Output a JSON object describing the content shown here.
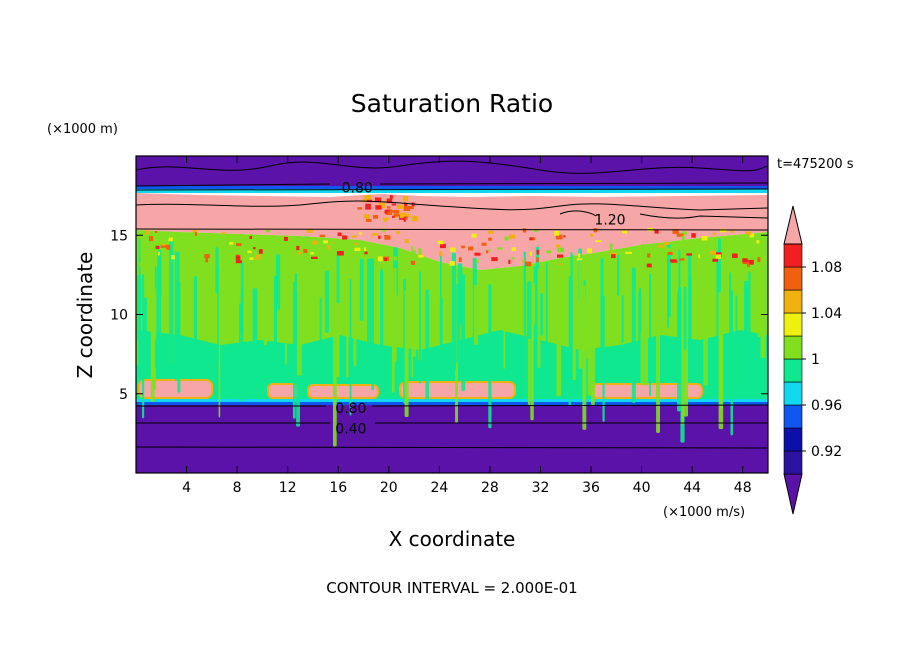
{
  "chart_data": {
    "type": "heatmap",
    "title": "Saturation Ratio",
    "xlabel": "X coordinate",
    "ylabel": "Z coordinate",
    "x_unit": "(×1000 m/s)",
    "y_unit": "(×1000 m)",
    "time_label": "t=475200 s",
    "footer": "CONTOUR INTERVAL = 2.000E-01",
    "xlim": [
      0,
      50
    ],
    "ylim": [
      0,
      20
    ],
    "x_ticks": [
      4,
      8,
      12,
      16,
      20,
      24,
      28,
      32,
      36,
      40,
      44,
      48
    ],
    "y_ticks": [
      5,
      10,
      15
    ],
    "contour_labels": [
      {
        "text": "0.80",
        "x": 17.5,
        "y": 18.0
      },
      {
        "text": "1.20",
        "x": 37.5,
        "y": 16.0
      },
      {
        "text": "0.80",
        "x": 17.0,
        "y": 4.1
      },
      {
        "text": "0.40",
        "x": 17.0,
        "y": 2.8
      }
    ],
    "layers": [
      {
        "level": "<0.92",
        "z_from": 0.0,
        "z_to": 4.4
      },
      {
        "level": "0.94",
        "z_from": 4.4,
        "z_to": 4.6
      },
      {
        "level": "0.96",
        "z_from": 4.6,
        "z_to": 4.8
      },
      {
        "level": "0.98-1",
        "z_from": 4.8,
        "z_to": 6.0
      },
      {
        "level": "1-1.02",
        "z_from": 6.0,
        "z_to": 15.0
      },
      {
        "level": "1.02-1.08",
        "z_from": 15.0,
        "z_to": 15.6
      },
      {
        "level": ">1.1",
        "z_from": 15.6,
        "z_to": 17.5
      },
      {
        "level": "0.94-0.98",
        "z_from": 17.5,
        "z_to": 18.0
      },
      {
        "level": "<0.92",
        "z_from": 18.0,
        "z_to": 20.0
      }
    ],
    "colorbar": {
      "labels": [
        "0.92",
        "0.96",
        "1",
        "1.04",
        "1.08"
      ],
      "colors": [
        "#5a12a8",
        "#2c12a0",
        "#0a10a8",
        "#1057f0",
        "#10d8f0",
        "#10e890",
        "#80e020",
        "#f0f010",
        "#f0b010",
        "#f06010",
        "#f02020",
        "#f6a6a6"
      ]
    }
  }
}
